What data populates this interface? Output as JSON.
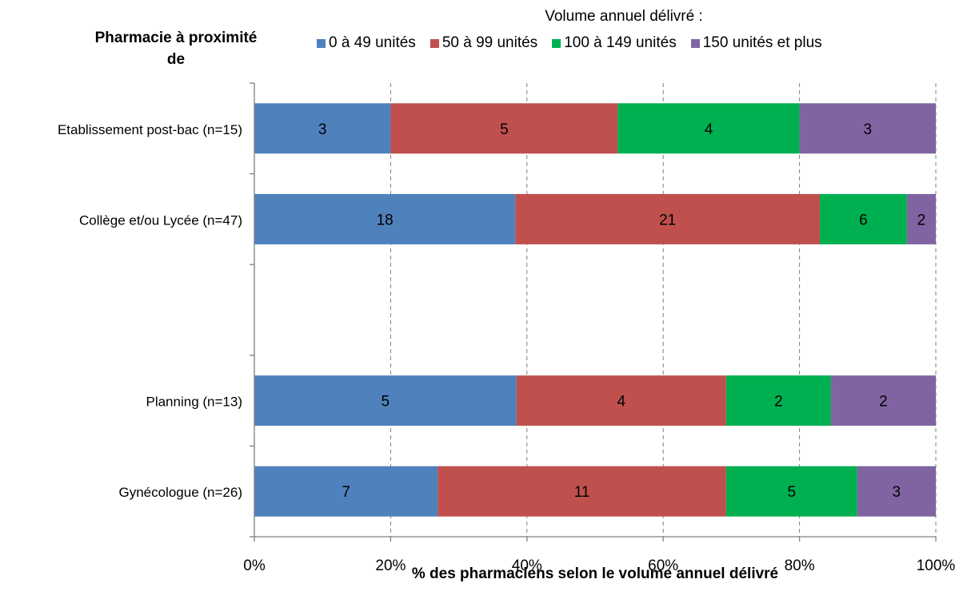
{
  "chart_data": {
    "type": "bar",
    "orientation": "horizontal",
    "stacked": "percent",
    "y_axis_title": "Pharmacie  à proximité de",
    "legend_title": "Volume annuel délivré :",
    "xlabel": "% des pharmaciens selon le volume annuel délivré",
    "x_ticks": [
      "0%",
      "20%",
      "40%",
      "60%",
      "80%",
      "100%"
    ],
    "xlim": [
      0,
      100
    ],
    "grid": "vertical dashed",
    "legend_position": "top",
    "categories": [
      "Etablissement post-bac (n=15)",
      "Collège et/ou Lycée (n=47)",
      "",
      "Planning (n=13)",
      "Gynécologue (n=26)"
    ],
    "series": [
      {
        "name": "0 à 49 unités",
        "color": "#4f81bd",
        "values": [
          3,
          18,
          null,
          5,
          7
        ]
      },
      {
        "name": "50 à 99 unités",
        "color": "#c0504d",
        "values": [
          5,
          21,
          null,
          4,
          11
        ]
      },
      {
        "name": "100 à 149 unités",
        "color": "#00b050",
        "values": [
          4,
          6,
          null,
          2,
          5
        ]
      },
      {
        "name": "150 unités et plus",
        "color": "#8064a2",
        "values": [
          3,
          2,
          null,
          2,
          3
        ]
      }
    ]
  }
}
